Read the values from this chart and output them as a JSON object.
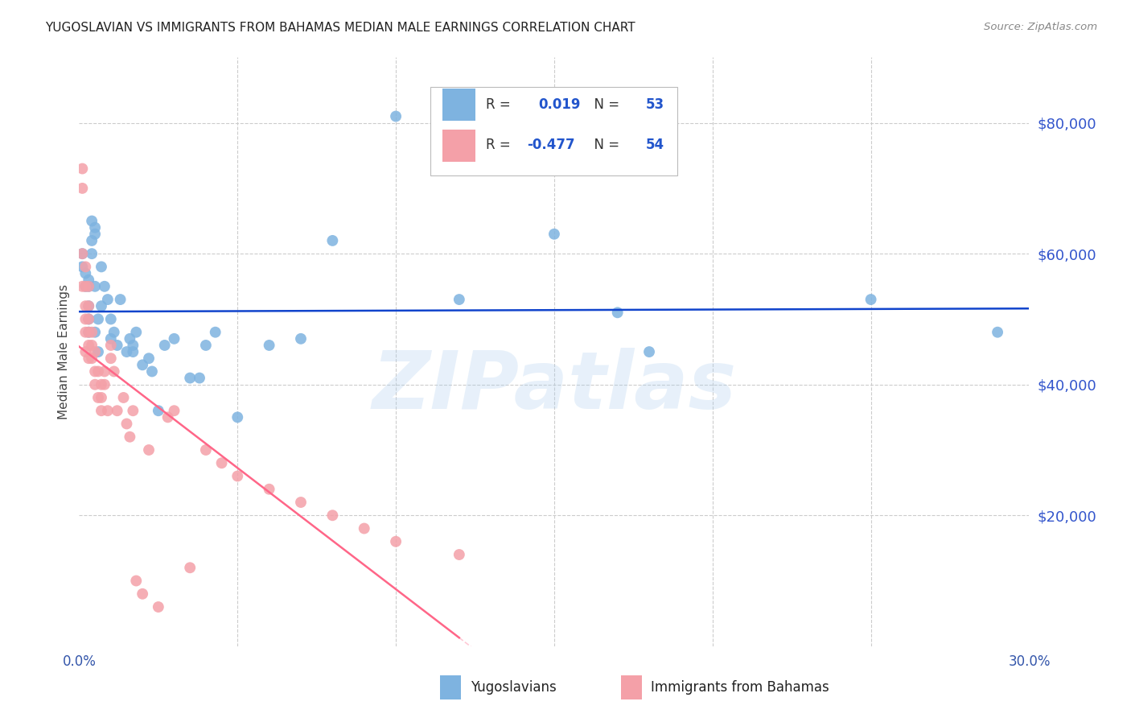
{
  "title": "YUGOSLAVIAN VS IMMIGRANTS FROM BAHAMAS MEDIAN MALE EARNINGS CORRELATION CHART",
  "source": "Source: ZipAtlas.com",
  "ylabel": "Median Male Earnings",
  "blue_color": "#7EB3E0",
  "pink_color": "#F4A0A8",
  "line_blue": "#1144CC",
  "line_pink": "#FF6688",
  "ytick_labels": [
    "$20,000",
    "$40,000",
    "$60,000",
    "$80,000"
  ],
  "ytick_values": [
    20000,
    40000,
    60000,
    80000
  ],
  "watermark": "ZIPatlas",
  "r_blue": "0.019",
  "r_pink": "-0.477",
  "n_blue": "53",
  "n_pink": "54",
  "blue_x": [
    0.001,
    0.001,
    0.002,
    0.002,
    0.003,
    0.003,
    0.003,
    0.003,
    0.003,
    0.004,
    0.004,
    0.004,
    0.005,
    0.005,
    0.005,
    0.005,
    0.006,
    0.006,
    0.007,
    0.007,
    0.008,
    0.009,
    0.01,
    0.01,
    0.011,
    0.012,
    0.013,
    0.015,
    0.016,
    0.017,
    0.017,
    0.018,
    0.02,
    0.022,
    0.023,
    0.025,
    0.027,
    0.03,
    0.035,
    0.038,
    0.04,
    0.043,
    0.05,
    0.06,
    0.07,
    0.08,
    0.1,
    0.12,
    0.15,
    0.18,
    0.25,
    0.29,
    0.17
  ],
  "blue_y": [
    60000,
    58000,
    55000,
    57000,
    55000,
    52000,
    50000,
    48000,
    56000,
    65000,
    60000,
    62000,
    64000,
    63000,
    55000,
    48000,
    50000,
    45000,
    58000,
    52000,
    55000,
    53000,
    50000,
    47000,
    48000,
    46000,
    53000,
    45000,
    47000,
    46000,
    45000,
    48000,
    43000,
    44000,
    42000,
    36000,
    46000,
    47000,
    41000,
    41000,
    46000,
    48000,
    35000,
    46000,
    47000,
    62000,
    81000,
    53000,
    63000,
    45000,
    53000,
    48000,
    51000
  ],
  "pink_x": [
    0.001,
    0.001,
    0.001,
    0.001,
    0.002,
    0.002,
    0.002,
    0.002,
    0.002,
    0.002,
    0.003,
    0.003,
    0.003,
    0.003,
    0.003,
    0.003,
    0.004,
    0.004,
    0.004,
    0.005,
    0.005,
    0.005,
    0.006,
    0.006,
    0.007,
    0.007,
    0.007,
    0.008,
    0.008,
    0.009,
    0.01,
    0.01,
    0.011,
    0.012,
    0.014,
    0.015,
    0.016,
    0.017,
    0.018,
    0.02,
    0.022,
    0.025,
    0.028,
    0.03,
    0.035,
    0.04,
    0.045,
    0.05,
    0.06,
    0.07,
    0.08,
    0.09,
    0.1,
    0.12
  ],
  "pink_y": [
    73000,
    70000,
    60000,
    55000,
    58000,
    55000,
    52000,
    50000,
    48000,
    45000,
    55000,
    52000,
    50000,
    48000,
    46000,
    44000,
    48000,
    46000,
    44000,
    42000,
    45000,
    40000,
    42000,
    38000,
    40000,
    38000,
    36000,
    42000,
    40000,
    36000,
    46000,
    44000,
    42000,
    36000,
    38000,
    34000,
    32000,
    36000,
    10000,
    8000,
    30000,
    6000,
    35000,
    36000,
    12000,
    30000,
    28000,
    26000,
    24000,
    22000,
    20000,
    18000,
    16000,
    14000
  ]
}
